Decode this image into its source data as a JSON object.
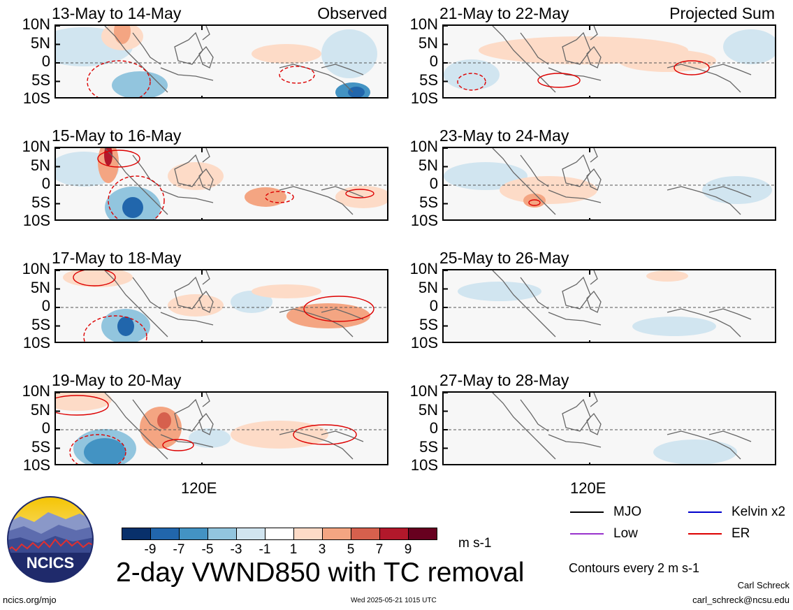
{
  "panels": [
    {
      "title": "13-May to 14-May",
      "tag": "Observed",
      "col": 0,
      "row": 0
    },
    {
      "title": "15-May to 16-May",
      "tag": "",
      "col": 0,
      "row": 1
    },
    {
      "title": "17-May to 18-May",
      "tag": "",
      "col": 0,
      "row": 2
    },
    {
      "title": "19-May to 20-May",
      "tag": "",
      "col": 0,
      "row": 3
    },
    {
      "title": "21-May to 22-May",
      "tag": "Projected Sum",
      "col": 1,
      "row": 0
    },
    {
      "title": "23-May to 24-May",
      "tag": "",
      "col": 1,
      "row": 1
    },
    {
      "title": "25-May to 26-May",
      "tag": "",
      "col": 1,
      "row": 2
    },
    {
      "title": "27-May to 28-May",
      "tag": "",
      "col": 1,
      "row": 3
    }
  ],
  "y_ticks": [
    "10N",
    "5N",
    "0",
    "5S",
    "10S"
  ],
  "x_tick": "120E",
  "colorbar": {
    "levels": [
      "-9",
      "-7",
      "-5",
      "-3",
      "-1",
      "1",
      "3",
      "5",
      "7",
      "9"
    ],
    "colors": [
      "#08306b",
      "#2166ac",
      "#4393c3",
      "#92c5de",
      "#d1e5f0",
      "#ffffff",
      "#fddbc7",
      "#f4a582",
      "#d6604d",
      "#b2182b",
      "#67001f"
    ],
    "units": "m s-1"
  },
  "main_title": "2-day VWND850 with TC removal",
  "logo_text": "NCICS",
  "legend": [
    {
      "label": "MJO",
      "color": "#000000"
    },
    {
      "label": "Kelvin x2",
      "color": "#0000cc"
    },
    {
      "label": "Low",
      "color": "#9933cc"
    },
    {
      "label": "ER",
      "color": "#dd0000"
    }
  ],
  "contour_note": "Contours every 2 m s-1",
  "author": "Carl Schreck",
  "email": "carl_schreck@ncsu.edu",
  "url": "ncics.org/mjo",
  "timestamp": "Wed 2025-05-21 1015 UTC"
}
